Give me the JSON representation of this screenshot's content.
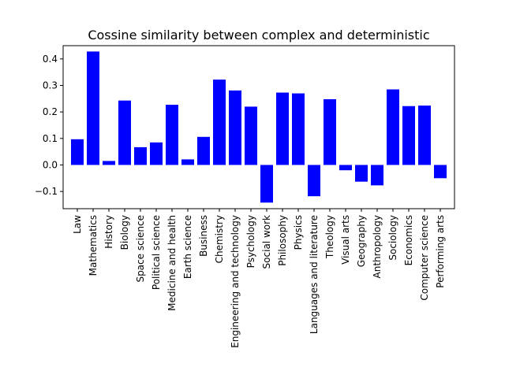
{
  "chart_data": {
    "type": "bar",
    "title": "Cossine similarity between complex and deterministic",
    "xlabel": "",
    "ylabel": "",
    "ylim": [
      -0.165,
      0.45
    ],
    "yticks": [
      -0.1,
      0.0,
      0.1,
      0.2,
      0.3,
      0.4
    ],
    "ytick_labels": [
      "−0.1",
      "0.0",
      "0.1",
      "0.2",
      "0.3",
      "0.4"
    ],
    "grid": false,
    "bar_color": "#0000ff",
    "categories": [
      "Law",
      "Mathematics",
      "History",
      "Biology",
      "Space science",
      "Political science",
      "Medicine and health",
      "Earth science",
      "Business",
      "Chemistry",
      "Engineering and technology",
      "Psychology",
      "Social work",
      "Philosophy",
      "Physics",
      "Languages and literature",
      "Theology",
      "Visual arts",
      "Geography",
      "Anthropology",
      "Sociology",
      "Economics",
      "Computer science",
      "Performing arts"
    ],
    "values": [
      0.097,
      0.428,
      0.015,
      0.243,
      0.067,
      0.085,
      0.227,
      0.021,
      0.106,
      0.322,
      0.281,
      0.22,
      -0.142,
      0.273,
      0.27,
      -0.118,
      0.248,
      -0.02,
      -0.063,
      -0.077,
      0.285,
      0.222,
      0.224,
      -0.05
    ]
  }
}
